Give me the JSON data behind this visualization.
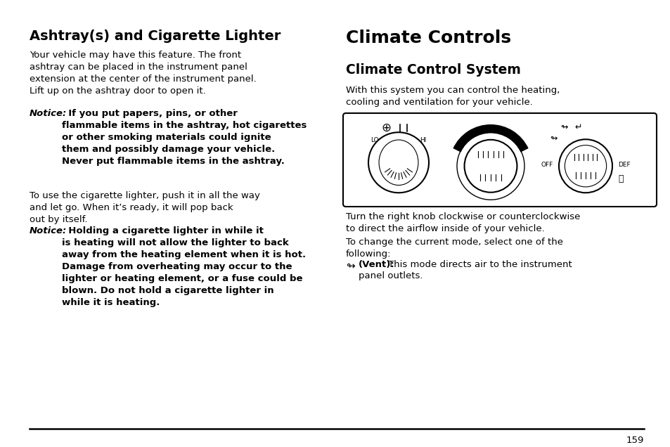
{
  "title_left": "Ashtray(s) and Cigarette Lighter",
  "title_right": "Climate Controls",
  "subtitle_right": "Climate Control System",
  "body_left_1": "Your vehicle may have this feature. The front\nashtray can be placed in the instrument panel\nextension at the center of the instrument panel.\nLift up on the ashtray door to open it.",
  "notice_1_label": "Notice:",
  "notice_1_text": "  If you put papers, pins, or other\nflammable items in the ashtray, hot cigarettes\nor other smoking materials could ignite\nthem and possibly damage your vehicle.\nNever put flammable items in the ashtray.",
  "body_left_2": "To use the cigarette lighter, push it in all the way\nand let go. When it’s ready, it will pop back\nout by itself.",
  "notice_2_label": "Notice:",
  "notice_2_text": "  Holding a cigarette lighter in while it\nis heating will not allow the lighter to back\naway from the heating element when it is hot.\nDamage from overheating may occur to the\nlighter or heating element, or a fuse could be\nblown. Do not hold a cigarette lighter in\nwhile it is heating.",
  "body_right_1": "With this system you can control the heating,\ncooling and ventilation for your vehicle.",
  "body_right_2": "Turn the right knob clockwise or counterclockwise\nto direct the airflow inside of your vehicle.",
  "body_right_3": "To change the current mode, select one of the\nfollowing:",
  "vent_bold": "(Vent):",
  "vent_text": "  This mode directs air to the instrument\npanel outlets.",
  "page_number": "159",
  "bg_color": "#ffffff",
  "text_color": "#000000"
}
